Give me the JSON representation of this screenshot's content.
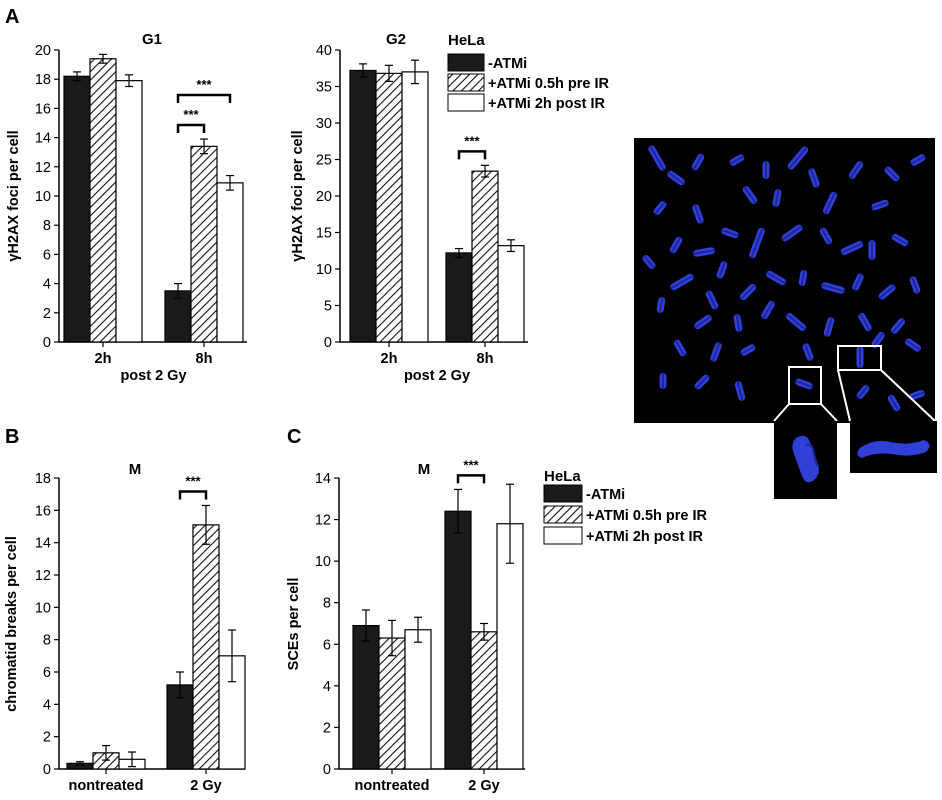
{
  "panel_letters": {
    "a": "A",
    "b": "B",
    "c": "C"
  },
  "colors": {
    "minus_atmi": "#1a1a1a",
    "hatch": "#111111",
    "open_bar": "#ffffff",
    "micrograph_bg": "#000000",
    "chromosome": "#2f3fd8"
  },
  "legends": {
    "top": {
      "title": "HeLa",
      "entries": [
        "-ATMi",
        "+ATMi 0.5h pre IR",
        "+ATMi 2h post IR"
      ]
    },
    "bottom": {
      "title": "HeLa",
      "entries": [
        "-ATMi",
        "+ATMi 0.5h pre IR",
        "+ATMi 2h post IR"
      ]
    }
  },
  "chart_data": [
    {
      "type": "bar",
      "title": "G1",
      "ylabel": "γH2AX foci per cell",
      "xlabel": "post 2 Gy",
      "categories": [
        "2h",
        "8h"
      ],
      "ylim": [
        0,
        20
      ],
      "yticks": [
        "0",
        "2",
        "4",
        "6",
        "8",
        "10",
        "12",
        "14",
        "16",
        "18",
        "20"
      ],
      "series": [
        {
          "name": "-ATMi",
          "values": [
            18.2,
            3.5
          ],
          "errors": [
            0.3,
            0.5
          ]
        },
        {
          "name": "+ATMi 0.5h pre IR",
          "values": [
            19.4,
            13.4
          ],
          "errors": [
            0.3,
            0.5
          ]
        },
        {
          "name": "+ATMi 2h post IR",
          "values": [
            17.9,
            10.9
          ],
          "errors": [
            0.4,
            0.5
          ]
        }
      ],
      "significance": [
        {
          "label": "***",
          "category": "8h",
          "from_series": 0,
          "to_series": 1
        },
        {
          "label": "***",
          "category": "8h",
          "from_series": 0,
          "to_series": 2
        }
      ]
    },
    {
      "type": "bar",
      "title": "G2",
      "ylabel": "γH2AX foci per cell",
      "xlabel": "post 2 Gy",
      "categories": [
        "2h",
        "8h"
      ],
      "ylim": [
        0,
        40
      ],
      "yticks": [
        "0",
        "5",
        "10",
        "15",
        "20",
        "25",
        "30",
        "35",
        "40"
      ],
      "series": [
        {
          "name": "-ATMi",
          "values": [
            37.2,
            12.2
          ],
          "errors": [
            0.9,
            0.6
          ]
        },
        {
          "name": "+ATMi 0.5h pre IR",
          "values": [
            36.8,
            23.4
          ],
          "errors": [
            1.1,
            0.8
          ]
        },
        {
          "name": "+ATMi 2h post IR",
          "values": [
            37.0,
            13.2
          ],
          "errors": [
            1.6,
            0.8
          ]
        }
      ],
      "significance": [
        {
          "label": "***",
          "category": "8h",
          "from_series": 0,
          "to_series": 1
        }
      ]
    },
    {
      "type": "bar",
      "title": "M",
      "ylabel": "chromatid breaks per cell",
      "xlabel": "",
      "categories": [
        "nontreated",
        "2 Gy"
      ],
      "ylim": [
        0,
        18
      ],
      "yticks": [
        "0",
        "2",
        "4",
        "6",
        "8",
        "10",
        "12",
        "14",
        "16",
        "18"
      ],
      "series": [
        {
          "name": "-ATMi",
          "values": [
            0.35,
            5.2
          ],
          "errors": [
            0.1,
            0.8
          ]
        },
        {
          "name": "+ATMi 0.5h pre IR",
          "values": [
            1.0,
            15.1
          ],
          "errors": [
            0.45,
            1.2
          ]
        },
        {
          "name": "+ATMi 2h post IR",
          "values": [
            0.6,
            7.0
          ],
          "errors": [
            0.45,
            1.6
          ]
        }
      ],
      "significance": [
        {
          "label": "***",
          "category": "2 Gy",
          "from_series": 0,
          "to_series": 1
        }
      ]
    },
    {
      "type": "bar",
      "title": "M",
      "ylabel": "SCEs per cell",
      "xlabel": "",
      "categories": [
        "nontreated",
        "2 Gy"
      ],
      "ylim": [
        0,
        14
      ],
      "yticks": [
        "0",
        "2",
        "4",
        "6",
        "8",
        "10",
        "12",
        "14"
      ],
      "series": [
        {
          "name": "-ATMi",
          "values": [
            6.9,
            12.4
          ],
          "errors": [
            0.75,
            1.05
          ]
        },
        {
          "name": "+ATMi 0.5h pre IR",
          "values": [
            6.3,
            6.6
          ],
          "errors": [
            0.85,
            0.4
          ]
        },
        {
          "name": "+ATMi 2h post IR",
          "values": [
            6.7,
            11.8
          ],
          "errors": [
            0.6,
            1.9
          ]
        }
      ],
      "significance": [
        {
          "label": "***",
          "category": "2 Gy",
          "from_series": 0,
          "to_series": 1
        }
      ]
    }
  ]
}
